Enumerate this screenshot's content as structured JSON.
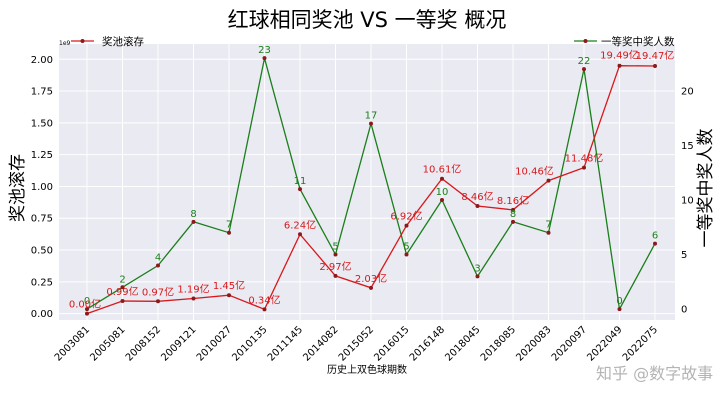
{
  "chart_data": {
    "type": "line",
    "title": "红球相同奖池 VS 一等奖 概况",
    "xlabel": "历史上双色球期数",
    "ylabel_left": "奖池滚存",
    "ylabel_right": "一等奖中奖人数",
    "left_axis_offset": "1e9",
    "categories": [
      "2003081",
      "2005081",
      "2008152",
      "2009121",
      "2010027",
      "2010135",
      "2011145",
      "2014082",
      "2015052",
      "2016015",
      "2016148",
      "2018045",
      "2018085",
      "2020083",
      "2020097",
      "2022049",
      "2022075"
    ],
    "ylim_left": [
      -0.05,
      2.12
    ],
    "yticks_left": [
      "0.00",
      "0.25",
      "0.50",
      "0.75",
      "1.00",
      "1.25",
      "1.50",
      "1.75",
      "2.00"
    ],
    "yticks_left_values": [
      0,
      0.25,
      0.5,
      0.75,
      1.0,
      1.25,
      1.5,
      1.75,
      2.0
    ],
    "ylim_right": [
      -1,
      24.3
    ],
    "yticks_right": [
      "0",
      "5",
      "10",
      "15",
      "20"
    ],
    "yticks_right_values": [
      0,
      5,
      10,
      15,
      20
    ],
    "series": [
      {
        "name": "奖池滚存",
        "axis": "left",
        "color": "#d7191c",
        "values": [
          0.0,
          0.099,
          0.097,
          0.119,
          0.145,
          0.034,
          0.624,
          0.297,
          0.203,
          0.692,
          1.061,
          0.846,
          0.816,
          1.046,
          1.148,
          1.949,
          1.947
        ],
        "labels": [
          "0.00亿",
          "0.99亿",
          "0.97亿",
          "1.19亿",
          "1.45亿",
          "0.34亿",
          "6.24亿",
          "2.97亿",
          "2.03亿",
          "6.92亿",
          "10.61亿",
          "8.46亿",
          "8.16亿",
          "10.46亿",
          "11.48亿",
          "19.49亿",
          "19.47亿"
        ]
      },
      {
        "name": "一等奖中奖人数",
        "axis": "right",
        "color": "#1a7f1a",
        "values": [
          0,
          2,
          4,
          8,
          7,
          23,
          11,
          5,
          17,
          5,
          10,
          3,
          8,
          7,
          22,
          0,
          6
        ],
        "labels": [
          "0",
          "2",
          "4",
          "8",
          "7",
          "23",
          "11",
          "5",
          "17",
          "5",
          "10",
          "3",
          "8",
          "7",
          "22",
          "0",
          "6"
        ]
      }
    ],
    "legend": [
      "top-left: 奖池滚存",
      "top-right: 一等奖中奖人数"
    ],
    "grid": true
  },
  "watermark": "知乎 @数字故事"
}
